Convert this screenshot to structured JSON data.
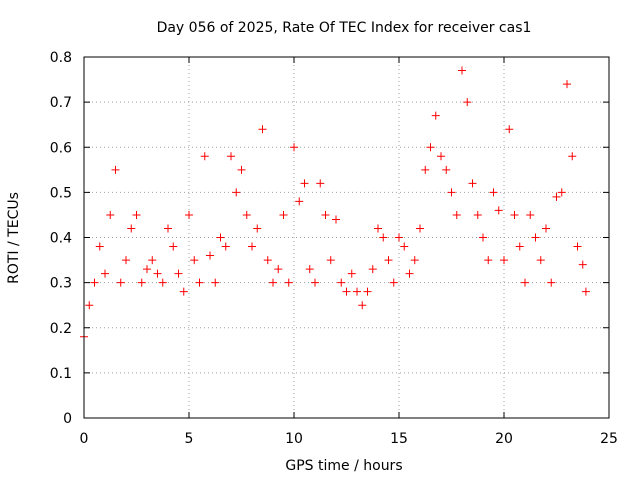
{
  "chart_data": {
    "type": "scatter",
    "title": "Day 056 of 2025, Rate Of TEC Index for receiver cas1",
    "xlabel": "GPS time / hours",
    "ylabel": "ROTI / TECUs",
    "xlim": [
      0,
      25
    ],
    "ylim": [
      0,
      0.8
    ],
    "xticks": [
      0,
      5,
      10,
      15,
      20,
      25
    ],
    "yticks": [
      0,
      0.1,
      0.2,
      0.3,
      0.4,
      0.5,
      0.6,
      0.7,
      0.8
    ],
    "xtick_labels": [
      "0",
      "5",
      "10",
      "15",
      "20",
      "25"
    ],
    "ytick_labels": [
      "0",
      "0.1",
      "0.2",
      "0.3",
      "0.4",
      "0.5",
      "0.6",
      "0.7",
      "0.8"
    ],
    "grid": true,
    "marker": "+",
    "color": "#ff0000",
    "series": [
      {
        "name": "ROTI",
        "x": [
          0.0,
          0.25,
          0.5,
          0.75,
          1.0,
          1.25,
          1.5,
          1.75,
          2.0,
          2.25,
          2.5,
          2.75,
          3.0,
          3.25,
          3.5,
          3.75,
          4.0,
          4.25,
          4.5,
          4.75,
          5.0,
          5.25,
          5.5,
          5.75,
          6.0,
          6.25,
          6.5,
          6.75,
          7.0,
          7.25,
          7.5,
          7.75,
          8.0,
          8.25,
          8.5,
          8.75,
          9.0,
          9.25,
          9.5,
          9.75,
          10.0,
          10.25,
          10.5,
          10.75,
          11.0,
          11.25,
          11.5,
          11.75,
          12.0,
          12.25,
          12.5,
          12.75,
          13.0,
          13.25,
          13.5,
          13.75,
          14.0,
          14.25,
          14.5,
          14.75,
          15.0,
          15.25,
          15.5,
          15.75,
          16.0,
          16.25,
          16.5,
          16.75,
          17.0,
          17.25,
          17.5,
          17.75,
          18.0,
          18.25,
          18.5,
          18.75,
          19.0,
          19.25,
          19.5,
          19.75,
          20.0,
          20.25,
          20.5,
          20.75,
          21.0,
          21.25,
          21.5,
          21.75,
          22.0,
          22.25,
          22.5,
          22.75,
          23.0,
          23.25,
          23.5,
          23.75,
          23.9
        ],
        "y": [
          0.18,
          0.25,
          0.3,
          0.38,
          0.32,
          0.45,
          0.55,
          0.3,
          0.35,
          0.42,
          0.45,
          0.3,
          0.33,
          0.35,
          0.32,
          0.3,
          0.42,
          0.38,
          0.32,
          0.28,
          0.45,
          0.35,
          0.3,
          0.58,
          0.36,
          0.3,
          0.4,
          0.38,
          0.58,
          0.5,
          0.55,
          0.45,
          0.38,
          0.42,
          0.64,
          0.35,
          0.3,
          0.33,
          0.45,
          0.3,
          0.6,
          0.48,
          0.52,
          0.33,
          0.3,
          0.52,
          0.45,
          0.35,
          0.44,
          0.3,
          0.28,
          0.32,
          0.28,
          0.25,
          0.28,
          0.33,
          0.42,
          0.4,
          0.35,
          0.3,
          0.4,
          0.38,
          0.32,
          0.35,
          0.42,
          0.55,
          0.6,
          0.67,
          0.58,
          0.55,
          0.5,
          0.45,
          0.77,
          0.7,
          0.52,
          0.45,
          0.4,
          0.35,
          0.5,
          0.46,
          0.35,
          0.64,
          0.45,
          0.38,
          0.3,
          0.45,
          0.4,
          0.35,
          0.42,
          0.3,
          0.49,
          0.5,
          0.74,
          0.58,
          0.38,
          0.34,
          0.28
        ]
      }
    ]
  }
}
